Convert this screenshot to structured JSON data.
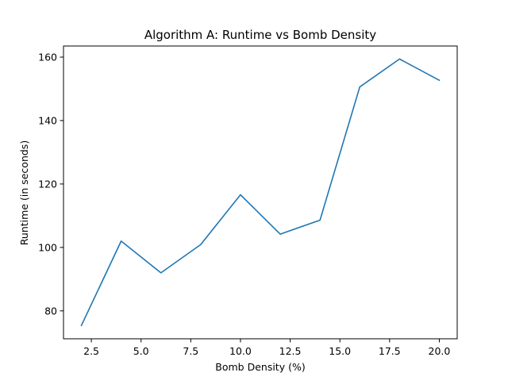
{
  "chart_data": {
    "type": "line",
    "title": "Algorithm A: Runtime vs Bomb Density",
    "xlabel": "Bomb Density (%)",
    "ylabel": "Runtime (in seconds)",
    "xlim": [
      1.1,
      20.9
    ],
    "ylim": [
      71.2,
      163.5
    ],
    "x_ticks": [
      2.5,
      5.0,
      7.5,
      10.0,
      12.5,
      15.0,
      17.5,
      20.0
    ],
    "x_tick_labels": [
      "2.5",
      "5.0",
      "7.5",
      "10.0",
      "12.5",
      "15.0",
      "17.5",
      "20.0"
    ],
    "y_ticks": [
      80,
      100,
      120,
      140,
      160
    ],
    "y_tick_labels": [
      "80",
      "100",
      "120",
      "140",
      "160"
    ],
    "grid": false,
    "legend": "none",
    "series": [
      {
        "color": "#1f77b4",
        "x": [
          2,
          4,
          6,
          8,
          10,
          12,
          14,
          16,
          18,
          20
        ],
        "y": [
          75.4,
          102.0,
          92.0,
          100.9,
          116.6,
          104.2,
          108.6,
          150.6,
          159.4,
          152.7
        ]
      }
    ]
  }
}
